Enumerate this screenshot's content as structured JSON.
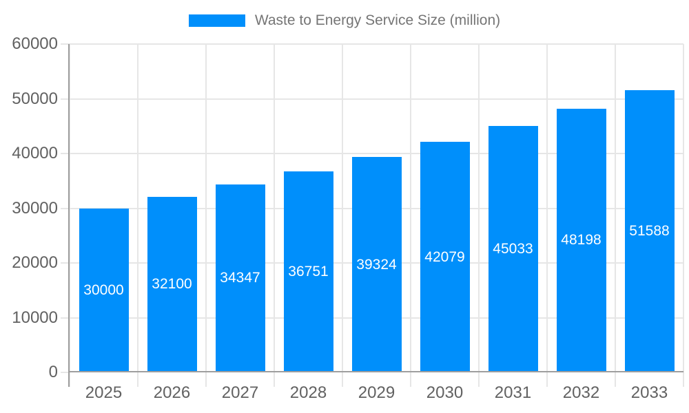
{
  "legend": {
    "label": "Waste to Energy Service Size (million)"
  },
  "colors": {
    "bar": "#008FFB",
    "bar_label": "#FFFFFF",
    "gridline": "#E6E6E6",
    "axis_line": "#9E9E9E",
    "axis_label": "#616161",
    "legend_text": "#757575",
    "background": "#FFFFFF"
  },
  "chart_data": {
    "type": "bar",
    "title": "Waste to Energy Service Size (million)",
    "categories": [
      "2025",
      "2026",
      "2027",
      "2028",
      "2029",
      "2030",
      "2031",
      "2032",
      "2033"
    ],
    "values": [
      30000,
      32100,
      34347,
      36751,
      39324,
      42079,
      45033,
      48198,
      51588
    ],
    "series_name": "Waste to Energy Service Size (million)",
    "xlabel": "",
    "ylabel": "",
    "ylim": [
      0,
      60000
    ],
    "yticks": [
      0,
      10000,
      20000,
      30000,
      40000,
      50000,
      60000
    ],
    "grid": true,
    "legend_position": "top",
    "bar_labels_inside": true
  }
}
